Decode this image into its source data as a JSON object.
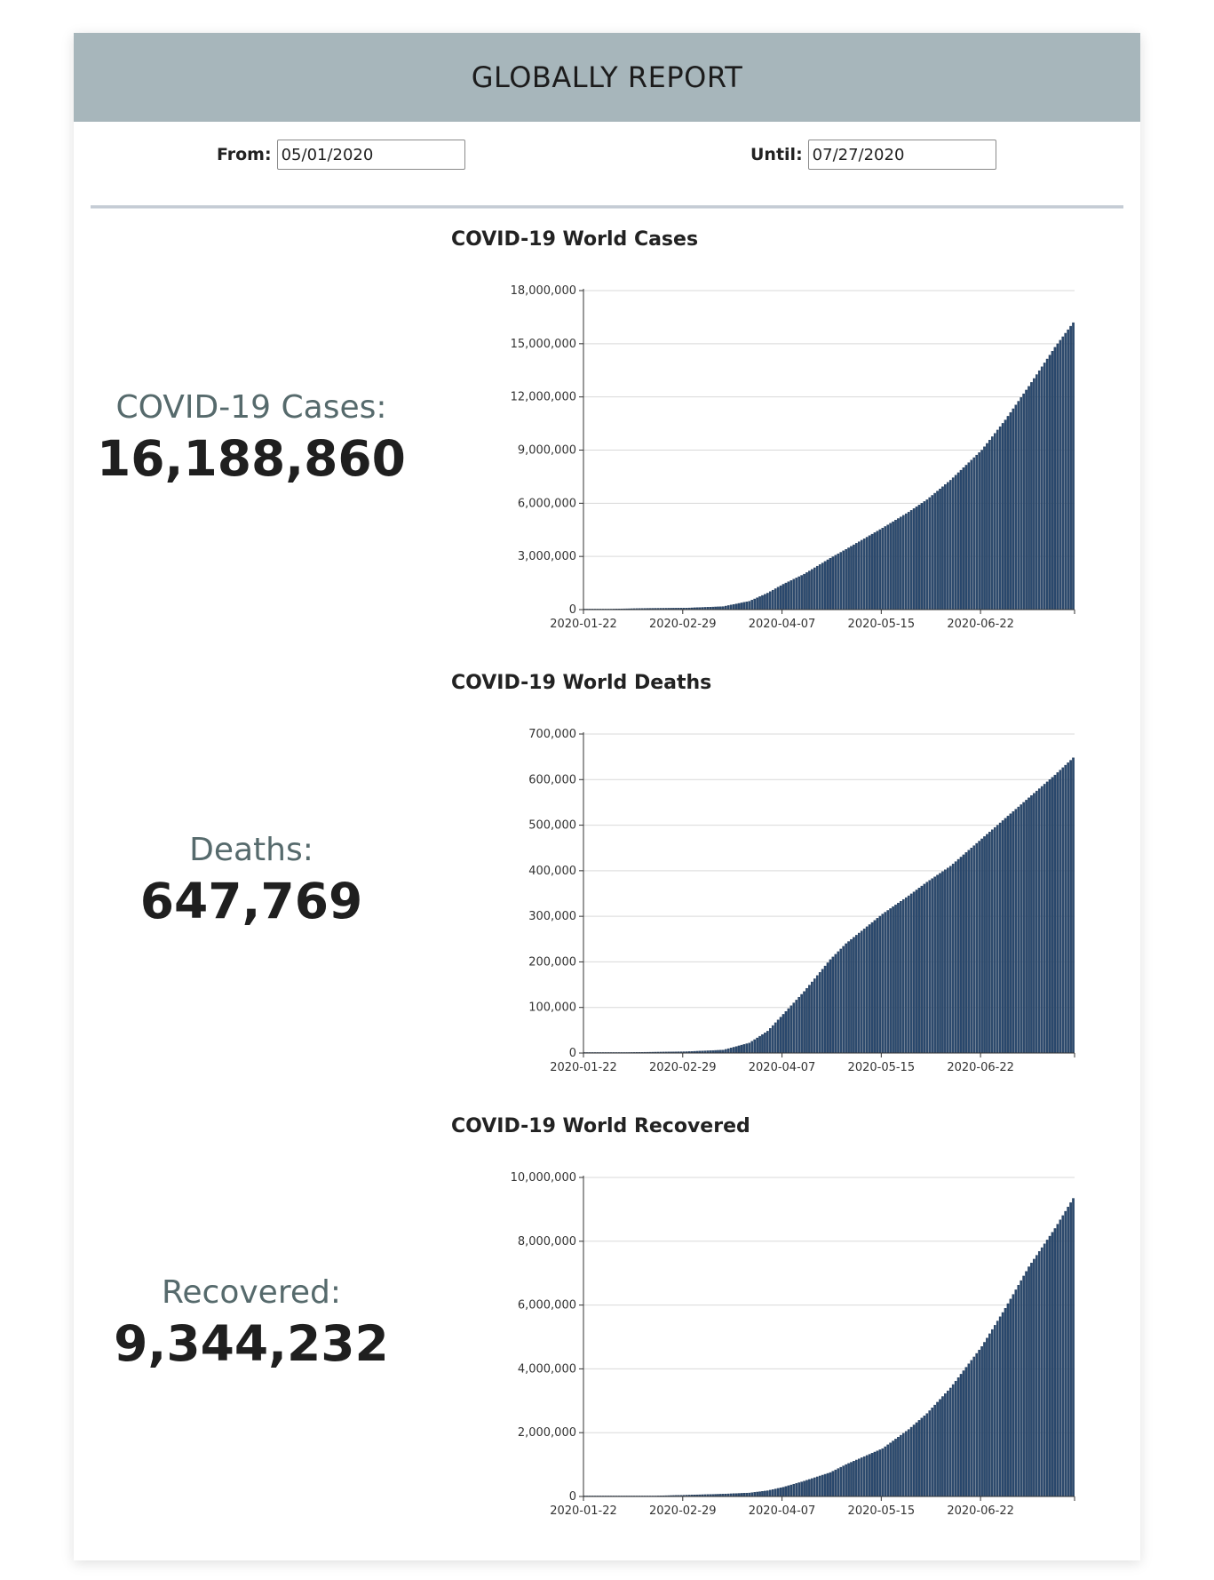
{
  "header": {
    "title": "GLOBALLY REPORT"
  },
  "filters": {
    "from_label": "From:",
    "from_value": "05/01/2020",
    "until_label": "Until:",
    "until_value": "07/27/2020"
  },
  "stats": [
    {
      "label": "COVID-19 Cases:",
      "value": "16,188,860"
    },
    {
      "label": "Deaths:",
      "value": "647,769"
    },
    {
      "label": "Recovered:",
      "value": "9,344,232"
    }
  ],
  "colors": {
    "header_bg": "#a7b6bb",
    "bar": "#2b4a6f",
    "stat_label": "#566a6c"
  },
  "chart_data": [
    {
      "type": "bar",
      "title": "COVID-19 World Cases",
      "xlabel": "",
      "ylabel": "",
      "x_start": "2020-01-22",
      "x_end": "2020-07-27",
      "x_ticks": [
        "2020-01-22",
        "2020-02-29",
        "2020-04-07",
        "2020-05-15",
        "2020-06-22"
      ],
      "ylim": [
        0,
        18000000
      ],
      "y_ticks": [
        0,
        3000000,
        6000000,
        9000000,
        12000000,
        15000000,
        18000000
      ],
      "y_tick_labels": [
        "0",
        "3,000,000",
        "6,000,000",
        "9,000,000",
        "12,000,000",
        "15,000,000",
        "18,000,000"
      ],
      "grid": true,
      "series": [
        {
          "dates": [
            "2020-01-22",
            "2020-02-15",
            "2020-03-01",
            "2020-03-15",
            "2020-03-25",
            "2020-04-01",
            "2020-04-07",
            "2020-04-15",
            "2020-04-25",
            "2020-05-01",
            "2020-05-15",
            "2020-05-25",
            "2020-06-01",
            "2020-06-10",
            "2020-06-22",
            "2020-07-01",
            "2020-07-10",
            "2020-07-20",
            "2020-07-27"
          ],
          "values": [
            550,
            70000,
            88000,
            170000,
            470000,
            930000,
            1430000,
            2000000,
            2900000,
            3400000,
            4600000,
            5500000,
            6200000,
            7300000,
            9000000,
            10700000,
            12600000,
            14800000,
            16188860
          ]
        }
      ]
    },
    {
      "type": "bar",
      "title": "COVID-19 World Deaths",
      "xlabel": "",
      "ylabel": "",
      "x_start": "2020-01-22",
      "x_end": "2020-07-27",
      "x_ticks": [
        "2020-01-22",
        "2020-02-29",
        "2020-04-07",
        "2020-05-15",
        "2020-06-22"
      ],
      "ylim": [
        0,
        700000
      ],
      "y_ticks": [
        0,
        100000,
        200000,
        300000,
        400000,
        500000,
        600000,
        700000
      ],
      "y_tick_labels": [
        "0",
        "100,000",
        "200,000",
        "300,000",
        "400,000",
        "500,000",
        "600,000",
        "700,000"
      ],
      "grid": true,
      "series": [
        {
          "dates": [
            "2020-01-22",
            "2020-02-15",
            "2020-03-01",
            "2020-03-15",
            "2020-03-25",
            "2020-04-01",
            "2020-04-07",
            "2020-04-15",
            "2020-04-25",
            "2020-05-01",
            "2020-05-15",
            "2020-05-25",
            "2020-06-01",
            "2020-06-10",
            "2020-06-22",
            "2020-07-01",
            "2020-07-10",
            "2020-07-20",
            "2020-07-27"
          ],
          "values": [
            17,
            1700,
            3000,
            6500,
            22000,
            48000,
            85000,
            135000,
            205000,
            240000,
            305000,
            345000,
            375000,
            410000,
            470000,
            515000,
            560000,
            610000,
            647769
          ]
        }
      ]
    },
    {
      "type": "bar",
      "title": "COVID-19 World Recovered",
      "xlabel": "",
      "ylabel": "",
      "x_start": "2020-01-22",
      "x_end": "2020-07-27",
      "x_ticks": [
        "2020-01-22",
        "2020-02-29",
        "2020-04-07",
        "2020-05-15",
        "2020-06-22"
      ],
      "ylim": [
        0,
        10000000
      ],
      "y_ticks": [
        0,
        2000000,
        4000000,
        6000000,
        8000000,
        10000000
      ],
      "y_tick_labels": [
        "0",
        "2,000,000",
        "4,000,000",
        "6,000,000",
        "8,000,000",
        "10,000,000"
      ],
      "grid": true,
      "series": [
        {
          "dates": [
            "2020-01-22",
            "2020-02-15",
            "2020-03-01",
            "2020-03-15",
            "2020-03-25",
            "2020-04-01",
            "2020-04-07",
            "2020-04-15",
            "2020-04-25",
            "2020-05-01",
            "2020-05-15",
            "2020-05-25",
            "2020-06-01",
            "2020-06-10",
            "2020-06-22",
            "2020-07-01",
            "2020-07-10",
            "2020-07-20",
            "2020-07-27"
          ],
          "values": [
            30,
            10000,
            42000,
            75000,
            110000,
            180000,
            290000,
            480000,
            750000,
            1000000,
            1500000,
            2100000,
            2600000,
            3400000,
            4700000,
            5900000,
            7200000,
            8400000,
            9344232
          ]
        }
      ]
    }
  ]
}
